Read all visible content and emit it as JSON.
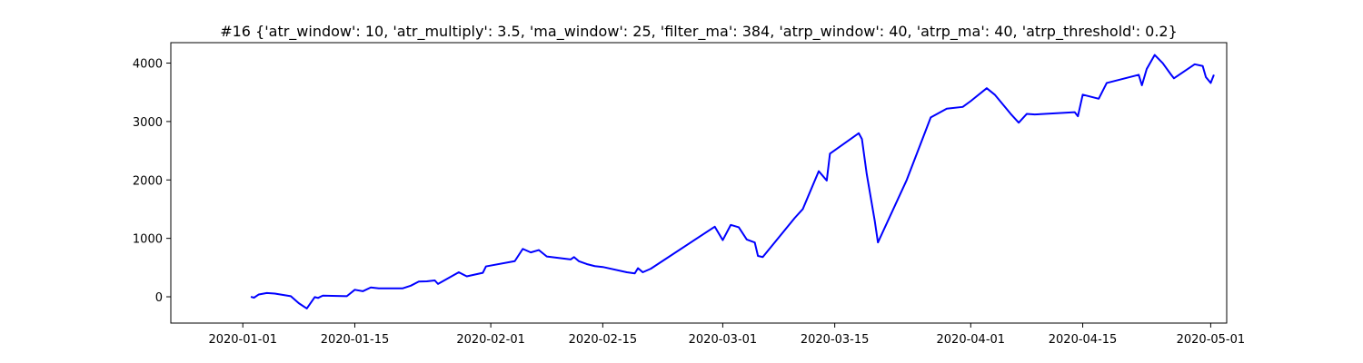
{
  "chart_data": {
    "type": "line",
    "title": "#16 {'atr_window': 10, 'atr_multiply': 3.5, 'ma_window': 25, 'filter_ma': 384, 'atrp_window': 40, 'atrp_ma': 40, 'atrp_threshold': 0.2}",
    "xlabel": "",
    "ylabel": "",
    "grid": false,
    "legend": "none",
    "xlim": [
      "2019-12-23",
      "2020-05-03"
    ],
    "ylim": [
      -450,
      4350
    ],
    "x_ticks": [
      "2020-01-01",
      "2020-01-15",
      "2020-02-01",
      "2020-02-15",
      "2020-03-01",
      "2020-03-15",
      "2020-04-01",
      "2020-04-15",
      "2020-05-01"
    ],
    "y_ticks": [
      0,
      1000,
      2000,
      3000,
      4000
    ],
    "series": [
      {
        "color": "#0000ff",
        "points": [
          [
            "2020-01-02",
            0
          ],
          [
            "2020-01-02",
            -15
          ],
          [
            "2020-01-03",
            40
          ],
          [
            "2020-01-04",
            65
          ],
          [
            "2020-01-05",
            55
          ],
          [
            "2020-01-07",
            10
          ],
          [
            "2020-01-08",
            -110
          ],
          [
            "2020-01-09",
            -200
          ],
          [
            "2020-01-10",
            -5
          ],
          [
            "2020-01-10",
            -20
          ],
          [
            "2020-01-11",
            20
          ],
          [
            "2020-01-14",
            10
          ],
          [
            "2020-01-15",
            120
          ],
          [
            "2020-01-16",
            95
          ],
          [
            "2020-01-17",
            160
          ],
          [
            "2020-01-18",
            145
          ],
          [
            "2020-01-21",
            145
          ],
          [
            "2020-01-22",
            190
          ],
          [
            "2020-01-23",
            260
          ],
          [
            "2020-01-24",
            265
          ],
          [
            "2020-01-25",
            280
          ],
          [
            "2020-01-25",
            220
          ],
          [
            "2020-01-28",
            420
          ],
          [
            "2020-01-29",
            350
          ],
          [
            "2020-01-31",
            410
          ],
          [
            "2020-01-31",
            520
          ],
          [
            "2020-02-04",
            610
          ],
          [
            "2020-02-05",
            820
          ],
          [
            "2020-02-06",
            760
          ],
          [
            "2020-02-07",
            800
          ],
          [
            "2020-02-08",
            690
          ],
          [
            "2020-02-11",
            640
          ],
          [
            "2020-02-11",
            680
          ],
          [
            "2020-02-12",
            610
          ],
          [
            "2020-02-13",
            560
          ],
          [
            "2020-02-14",
            525
          ],
          [
            "2020-02-15",
            510
          ],
          [
            "2020-02-18",
            420
          ],
          [
            "2020-02-19",
            400
          ],
          [
            "2020-02-19",
            490
          ],
          [
            "2020-02-20",
            420
          ],
          [
            "2020-02-21",
            480
          ],
          [
            "2020-02-29",
            1200
          ],
          [
            "2020-03-01",
            970
          ],
          [
            "2020-03-02",
            1230
          ],
          [
            "2020-03-03",
            1190
          ],
          [
            "2020-03-04",
            980
          ],
          [
            "2020-03-05",
            930
          ],
          [
            "2020-03-05",
            700
          ],
          [
            "2020-03-06",
            680
          ],
          [
            "2020-03-10",
            1350
          ],
          [
            "2020-03-11",
            1500
          ],
          [
            "2020-03-13",
            2150
          ],
          [
            "2020-03-14",
            1990
          ],
          [
            "2020-03-14",
            2450
          ],
          [
            "2020-03-18",
            2800
          ],
          [
            "2020-03-18",
            2700
          ],
          [
            "2020-03-19",
            2100
          ],
          [
            "2020-03-20",
            1300
          ],
          [
            "2020-03-20",
            930
          ],
          [
            "2020-03-24",
            2000
          ],
          [
            "2020-03-27",
            3070
          ],
          [
            "2020-03-29",
            3220
          ],
          [
            "2020-03-31",
            3250
          ],
          [
            "2020-04-01",
            3350
          ],
          [
            "2020-04-03",
            3570
          ],
          [
            "2020-04-04",
            3460
          ],
          [
            "2020-04-06",
            3130
          ],
          [
            "2020-04-07",
            2980
          ],
          [
            "2020-04-08",
            3130
          ],
          [
            "2020-04-09",
            3120
          ],
          [
            "2020-04-14",
            3160
          ],
          [
            "2020-04-14",
            3090
          ],
          [
            "2020-04-15",
            3460
          ],
          [
            "2020-04-17",
            3390
          ],
          [
            "2020-04-18",
            3660
          ],
          [
            "2020-04-22",
            3800
          ],
          [
            "2020-04-22",
            3620
          ],
          [
            "2020-04-23",
            3900
          ],
          [
            "2020-04-24",
            4140
          ],
          [
            "2020-04-25",
            4000
          ],
          [
            "2020-04-26",
            3810
          ],
          [
            "2020-04-26",
            3740
          ],
          [
            "2020-04-29",
            3980
          ],
          [
            "2020-04-30",
            3950
          ],
          [
            "2020-04-30",
            3760
          ],
          [
            "2020-05-01",
            3660
          ],
          [
            "2020-05-01",
            3800
          ]
        ]
      }
    ]
  },
  "colors": {
    "series_line": "#0000ff",
    "axis": "#000000",
    "background": "#ffffff"
  }
}
